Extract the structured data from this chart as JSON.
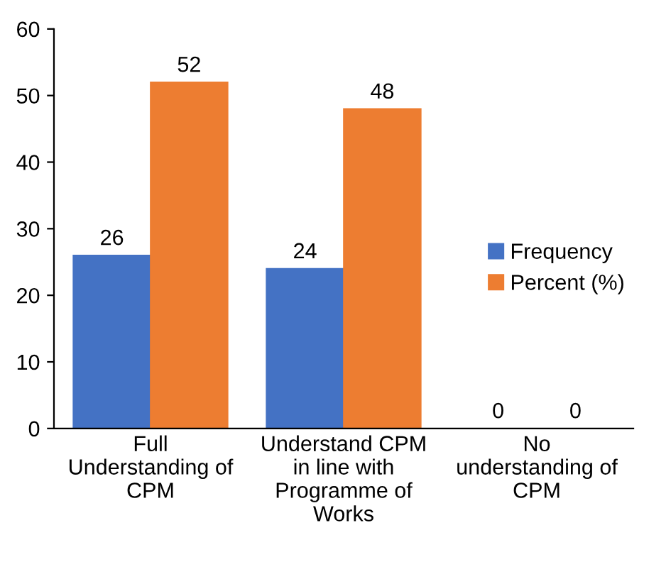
{
  "chart_data": {
    "type": "bar",
    "categories": [
      "Full\nUnderstanding of\nCPM",
      "Understand CPM\nin line with\nProgramme of\nWorks",
      "No\nunderstanding of\nCPM"
    ],
    "series": [
      {
        "name": "Frequency",
        "color": "#4472c4",
        "values": [
          26,
          24,
          0
        ]
      },
      {
        "name": "Percent (%)",
        "color": "#ed7d31",
        "values": [
          52,
          48,
          0
        ]
      }
    ],
    "ylim": [
      0,
      60
    ],
    "yticks": [
      0,
      10,
      20,
      30,
      40,
      50,
      60
    ],
    "data_labels": true,
    "grid": false,
    "legend": "right"
  }
}
